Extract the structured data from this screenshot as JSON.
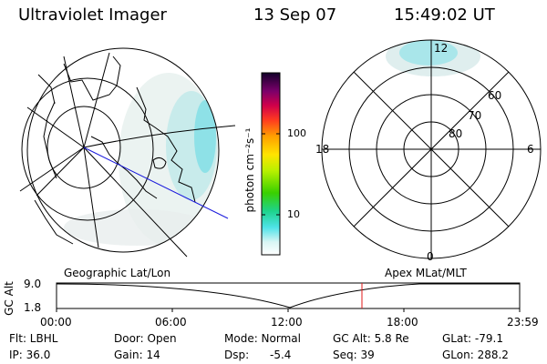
{
  "header": {
    "instrument": "Ultraviolet Imager",
    "date": "13 Sep 07",
    "time": "15:49:02 UT"
  },
  "colorbar": {
    "unit_label": "photon cm⁻²s⁻¹",
    "ticks": [
      "100",
      "10"
    ]
  },
  "polar": {
    "mlt_labels": {
      "top": "12",
      "left": "18",
      "right": "6",
      "bottom": "0"
    },
    "lat_labels": [
      "60",
      "70",
      "80"
    ]
  },
  "panel_labels": {
    "left": "Geographic Lat/Lon",
    "right": "Apex MLat/MLT"
  },
  "alt_plot": {
    "axis_title": "GC Alt",
    "y_ticks": [
      "9.0",
      "1.8"
    ],
    "x_ticks": [
      "00:00",
      "06:00",
      "12:00",
      "18:00",
      "23:59"
    ]
  },
  "info": {
    "row1": [
      "Flt: LBHL",
      "Door: Open",
      "Mode: Normal",
      "GC Alt: 5.8 Re",
      "GLat: -79.1"
    ],
    "row2": [
      "IP: 36.0",
      "Gain: 14",
      "Dsp:",
      "-5.4",
      "Seq: 39",
      "GLon: 288.2"
    ]
  }
}
